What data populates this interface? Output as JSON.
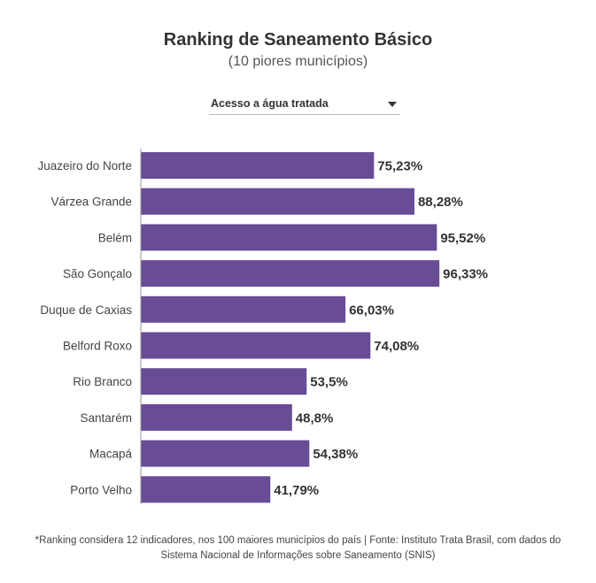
{
  "chart_data": {
    "type": "bar",
    "orientation": "horizontal",
    "title": "Ranking de Saneamento Básico",
    "subtitle": "(10 piores municípios)",
    "categories": [
      "Juazeiro do Norte",
      "Várzea Grande",
      "Belém",
      "São Gonçalo",
      "Duque de Caxias",
      "Belford Roxo",
      "Rio Branco",
      "Santarém",
      "Macapá",
      "Porto Velho"
    ],
    "values": [
      75.23,
      88.28,
      95.52,
      96.33,
      66.03,
      74.08,
      53.5,
      48.8,
      54.38,
      41.79
    ],
    "value_labels": [
      "75,23%",
      "88,28%",
      "95,52%",
      "96,33%",
      "66,03%",
      "74,08%",
      "53,5%",
      "48,8%",
      "54,38%",
      "41,79%"
    ],
    "xlim": [
      0,
      100
    ],
    "grid": false,
    "legend": "none",
    "bar_color": "#684c96"
  },
  "selector": {
    "selected": "Acesso a água tratada"
  },
  "footnote": "*Ranking considera 12 indicadores, nos 100 maiores municípios do país | Fonte: Instituto Trata Brasil, com dados do Sistema Nacional de Informações sobre Saneamento (SNIS)"
}
